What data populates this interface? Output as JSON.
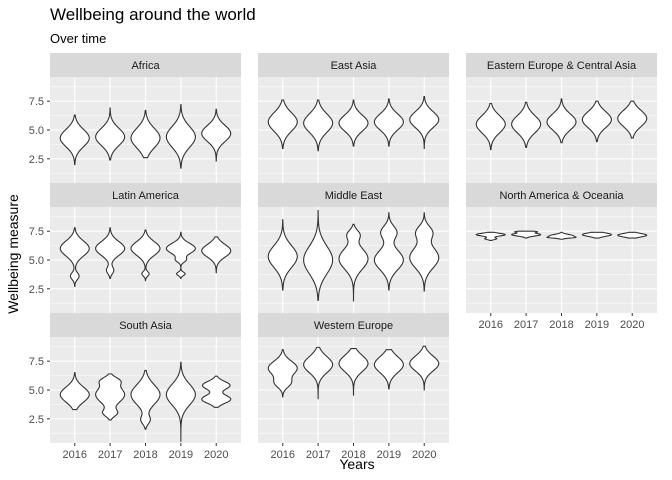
{
  "chart_data": {
    "type": "violin",
    "title": "Wellbeing around the world",
    "subtitle": "Over time",
    "xlabel": "Years",
    "ylabel": "Wellbeing measure",
    "categories": [
      "2016",
      "2017",
      "2018",
      "2019",
      "2020"
    ],
    "y_ticks": [
      "2.5",
      "5.0",
      "7.5"
    ],
    "y_tick_values": [
      2.5,
      5.0,
      7.5
    ],
    "ylim": [
      0.4,
      9.6
    ],
    "facet_layout": "wrap-3-columns",
    "grid": true,
    "colors": {
      "panel": "#ebebeb",
      "strip": "#d9d9d9",
      "grid": "#ffffff",
      "violin_fill": "#ffffff",
      "violin_line": "#333333"
    },
    "facets": [
      {
        "name": "Africa",
        "violins": [
          {
            "year": "2016",
            "min": 2.0,
            "max": 6.3,
            "modes": [
              [
                4.3,
                0.75,
                1.0
              ]
            ]
          },
          {
            "year": "2017",
            "min": 2.4,
            "max": 6.9,
            "modes": [
              [
                4.4,
                0.75,
                1.0
              ]
            ]
          },
          {
            "year": "2018",
            "min": 2.6,
            "max": 6.7,
            "modes": [
              [
                4.3,
                0.85,
                1.0
              ]
            ]
          },
          {
            "year": "2019",
            "min": 1.7,
            "max": 7.2,
            "modes": [
              [
                4.4,
                0.9,
                1.0
              ]
            ]
          },
          {
            "year": "2020",
            "min": 2.3,
            "max": 6.8,
            "modes": [
              [
                4.7,
                0.7,
                1.0
              ]
            ]
          }
        ]
      },
      {
        "name": "East Asia",
        "violins": [
          {
            "year": "2016",
            "min": 3.4,
            "max": 7.6,
            "modes": [
              [
                5.7,
                0.8,
                1.0
              ]
            ]
          },
          {
            "year": "2017",
            "min": 3.2,
            "max": 7.6,
            "modes": [
              [
                5.6,
                0.8,
                1.0
              ]
            ]
          },
          {
            "year": "2018",
            "min": 3.6,
            "max": 7.6,
            "modes": [
              [
                5.6,
                0.7,
                1.0
              ]
            ]
          },
          {
            "year": "2019",
            "min": 3.6,
            "max": 7.7,
            "modes": [
              [
                5.7,
                0.7,
                1.0
              ]
            ]
          },
          {
            "year": "2020",
            "min": 3.4,
            "max": 7.9,
            "modes": [
              [
                5.9,
                0.7,
                1.0
              ]
            ]
          }
        ]
      },
      {
        "name": "Eastern Europe & Central Asia",
        "violins": [
          {
            "year": "2016",
            "min": 3.3,
            "max": 7.3,
            "modes": [
              [
                5.5,
                0.75,
                1.0
              ]
            ]
          },
          {
            "year": "2017",
            "min": 3.5,
            "max": 7.4,
            "modes": [
              [
                5.5,
                0.75,
                1.0
              ]
            ]
          },
          {
            "year": "2018",
            "min": 3.9,
            "max": 7.7,
            "modes": [
              [
                5.7,
                0.7,
                1.0
              ]
            ]
          },
          {
            "year": "2019",
            "min": 4.0,
            "max": 7.5,
            "modes": [
              [
                5.9,
                0.7,
                1.0
              ]
            ]
          },
          {
            "year": "2020",
            "min": 4.3,
            "max": 7.5,
            "modes": [
              [
                6.0,
                0.7,
                1.0
              ]
            ]
          }
        ]
      },
      {
        "name": "Latin America",
        "violins": [
          {
            "year": "2016",
            "min": 2.7,
            "max": 7.8,
            "modes": [
              [
                6.0,
                0.65,
                1.0
              ],
              [
                3.6,
                0.3,
                0.3
              ]
            ]
          },
          {
            "year": "2017",
            "min": 3.4,
            "max": 7.8,
            "modes": [
              [
                6.0,
                0.6,
                1.0
              ],
              [
                4.1,
                0.3,
                0.25
              ]
            ]
          },
          {
            "year": "2018",
            "min": 3.2,
            "max": 7.6,
            "modes": [
              [
                6.0,
                0.6,
                1.0
              ],
              [
                3.8,
                0.2,
                0.25
              ]
            ]
          },
          {
            "year": "2019",
            "min": 3.4,
            "max": 7.4,
            "modes": [
              [
                6.0,
                0.45,
                1.0
              ],
              [
                3.8,
                0.15,
                0.3
              ],
              [
                5.0,
                0.2,
                0.3
              ]
            ]
          },
          {
            "year": "2020",
            "min": 3.9,
            "max": 7.0,
            "modes": [
              [
                5.8,
                0.55,
                1.0
              ]
            ]
          }
        ]
      },
      {
        "name": "Middle East",
        "violins": [
          {
            "year": "2016",
            "min": 2.4,
            "max": 8.5,
            "modes": [
              [
                5.3,
                0.95,
                1.0
              ]
            ]
          },
          {
            "year": "2017",
            "min": 1.5,
            "max": 9.3,
            "modes": [
              [
                5.0,
                1.2,
                1.0
              ]
            ]
          },
          {
            "year": "2018",
            "min": 1.4,
            "max": 8.1,
            "modes": [
              [
                5.1,
                0.9,
                1.0
              ],
              [
                7.2,
                0.4,
                0.4
              ]
            ]
          },
          {
            "year": "2019",
            "min": 2.4,
            "max": 9.1,
            "modes": [
              [
                5.0,
                0.85,
                1.0
              ],
              [
                7.4,
                0.55,
                0.55
              ]
            ]
          },
          {
            "year": "2020",
            "min": 2.3,
            "max": 9.1,
            "modes": [
              [
                5.2,
                0.9,
                1.0
              ],
              [
                7.4,
                0.55,
                0.55
              ]
            ]
          }
        ]
      },
      {
        "name": "North America & Oceania",
        "violins": [
          {
            "year": "2016",
            "min": 6.7,
            "max": 7.4,
            "modes": [
              [
                7.2,
                0.12,
                1.0
              ],
              [
                6.85,
                0.08,
                0.4
              ]
            ]
          },
          {
            "year": "2017",
            "min": 6.9,
            "max": 7.5,
            "modes": [
              [
                7.2,
                0.12,
                0.6
              ],
              [
                7.45,
                0.06,
                0.4
              ]
            ]
          },
          {
            "year": "2018",
            "min": 6.8,
            "max": 7.4,
            "modes": [
              [
                7.1,
                0.12,
                0.7
              ],
              [
                6.95,
                0.06,
                0.5
              ]
            ]
          },
          {
            "year": "2019",
            "min": 6.9,
            "max": 7.4,
            "modes": [
              [
                7.2,
                0.15,
                0.7
              ]
            ]
          },
          {
            "year": "2020",
            "min": 6.9,
            "max": 7.4,
            "modes": [
              [
                7.15,
                0.15,
                0.8
              ]
            ]
          }
        ]
      },
      {
        "name": "South Asia",
        "violins": [
          {
            "year": "2016",
            "min": 3.3,
            "max": 6.5,
            "modes": [
              [
                4.6,
                0.65,
                1.0
              ]
            ]
          },
          {
            "year": "2017",
            "min": 2.4,
            "max": 6.4,
            "modes": [
              [
                4.6,
                0.7,
                1.0
              ],
              [
                3.0,
                0.3,
                0.45
              ],
              [
                5.8,
                0.3,
                0.5
              ]
            ]
          },
          {
            "year": "2018",
            "min": 1.6,
            "max": 6.7,
            "modes": [
              [
                4.6,
                0.85,
                1.0
              ],
              [
                2.4,
                0.35,
                0.3
              ]
            ]
          },
          {
            "year": "2019",
            "min": 0.5,
            "max": 7.4,
            "modes": [
              [
                4.6,
                0.9,
                1.0
              ]
            ]
          },
          {
            "year": "2020",
            "min": 3.5,
            "max": 6.2,
            "modes": [
              [
                4.2,
                0.35,
                1.0
              ],
              [
                5.4,
                0.35,
                0.95
              ]
            ]
          }
        ]
      },
      {
        "name": "Western Europe",
        "violins": [
          {
            "year": "2016",
            "min": 4.4,
            "max": 8.5,
            "modes": [
              [
                6.9,
                0.6,
                1.0
              ],
              [
                5.6,
                0.4,
                0.5
              ]
            ]
          },
          {
            "year": "2017",
            "min": 4.2,
            "max": 8.7,
            "modes": [
              [
                7.2,
                0.7,
                1.0
              ]
            ]
          },
          {
            "year": "2018",
            "min": 4.5,
            "max": 8.6,
            "modes": [
              [
                7.3,
                0.7,
                1.0
              ]
            ]
          },
          {
            "year": "2019",
            "min": 5.1,
            "max": 8.5,
            "modes": [
              [
                7.2,
                0.7,
                1.0
              ]
            ]
          },
          {
            "year": "2020",
            "min": 5.0,
            "max": 8.8,
            "modes": [
              [
                7.3,
                0.65,
                1.0
              ]
            ]
          }
        ]
      }
    ]
  }
}
